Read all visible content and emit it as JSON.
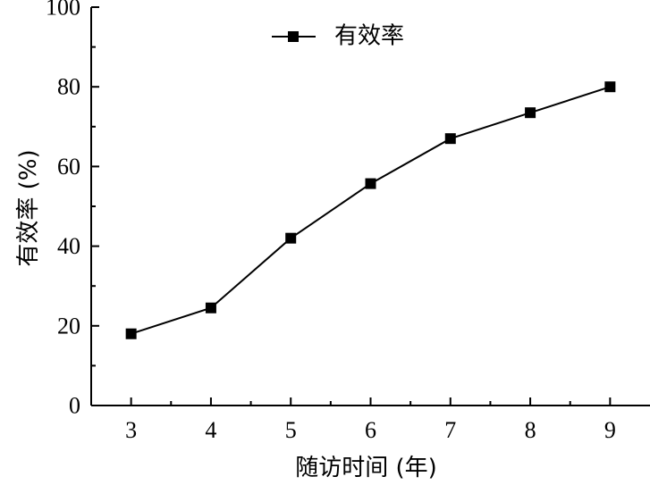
{
  "chart_data": {
    "type": "line",
    "title": "",
    "xlabel": "随访时间 (年)",
    "ylabel": "有效率 (%)",
    "x": [
      3,
      4,
      5,
      6,
      7,
      8,
      9
    ],
    "series": [
      {
        "name": "有效率",
        "values": [
          18,
          24.5,
          42,
          55.7,
          67,
          73.5,
          80
        ],
        "marker": "square",
        "color": "#000000"
      }
    ],
    "xticks": [
      "3",
      "4",
      "5",
      "6",
      "7",
      "8",
      "9"
    ],
    "yticks": [
      "0",
      "20",
      "40",
      "60",
      "80",
      "100"
    ],
    "xlim": [
      2.5,
      9.5
    ],
    "ylim": [
      0,
      100
    ],
    "grid": false,
    "legend_position": "top-center"
  }
}
